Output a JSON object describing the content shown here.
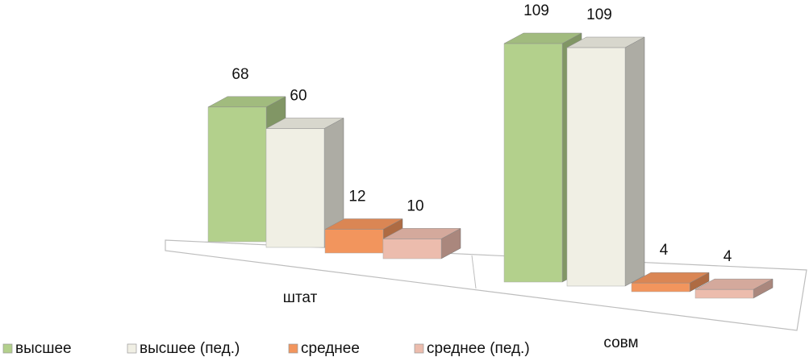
{
  "chart_data": {
    "type": "bar3d",
    "categories": [
      "штат",
      "совм"
    ],
    "series": [
      {
        "name": "высшее",
        "color": "#b3d08c",
        "values": [
          68,
          109
        ]
      },
      {
        "name": "высшее (пед.)",
        "color": "#f0efe4",
        "values": [
          60,
          109
        ]
      },
      {
        "name": "среднее",
        "color": "#f2955d",
        "values": [
          12,
          4
        ]
      },
      {
        "name": "среднее (пед.)",
        "color": "#ecbcad",
        "values": [
          10,
          4
        ]
      }
    ],
    "legend": "bottom-left"
  }
}
